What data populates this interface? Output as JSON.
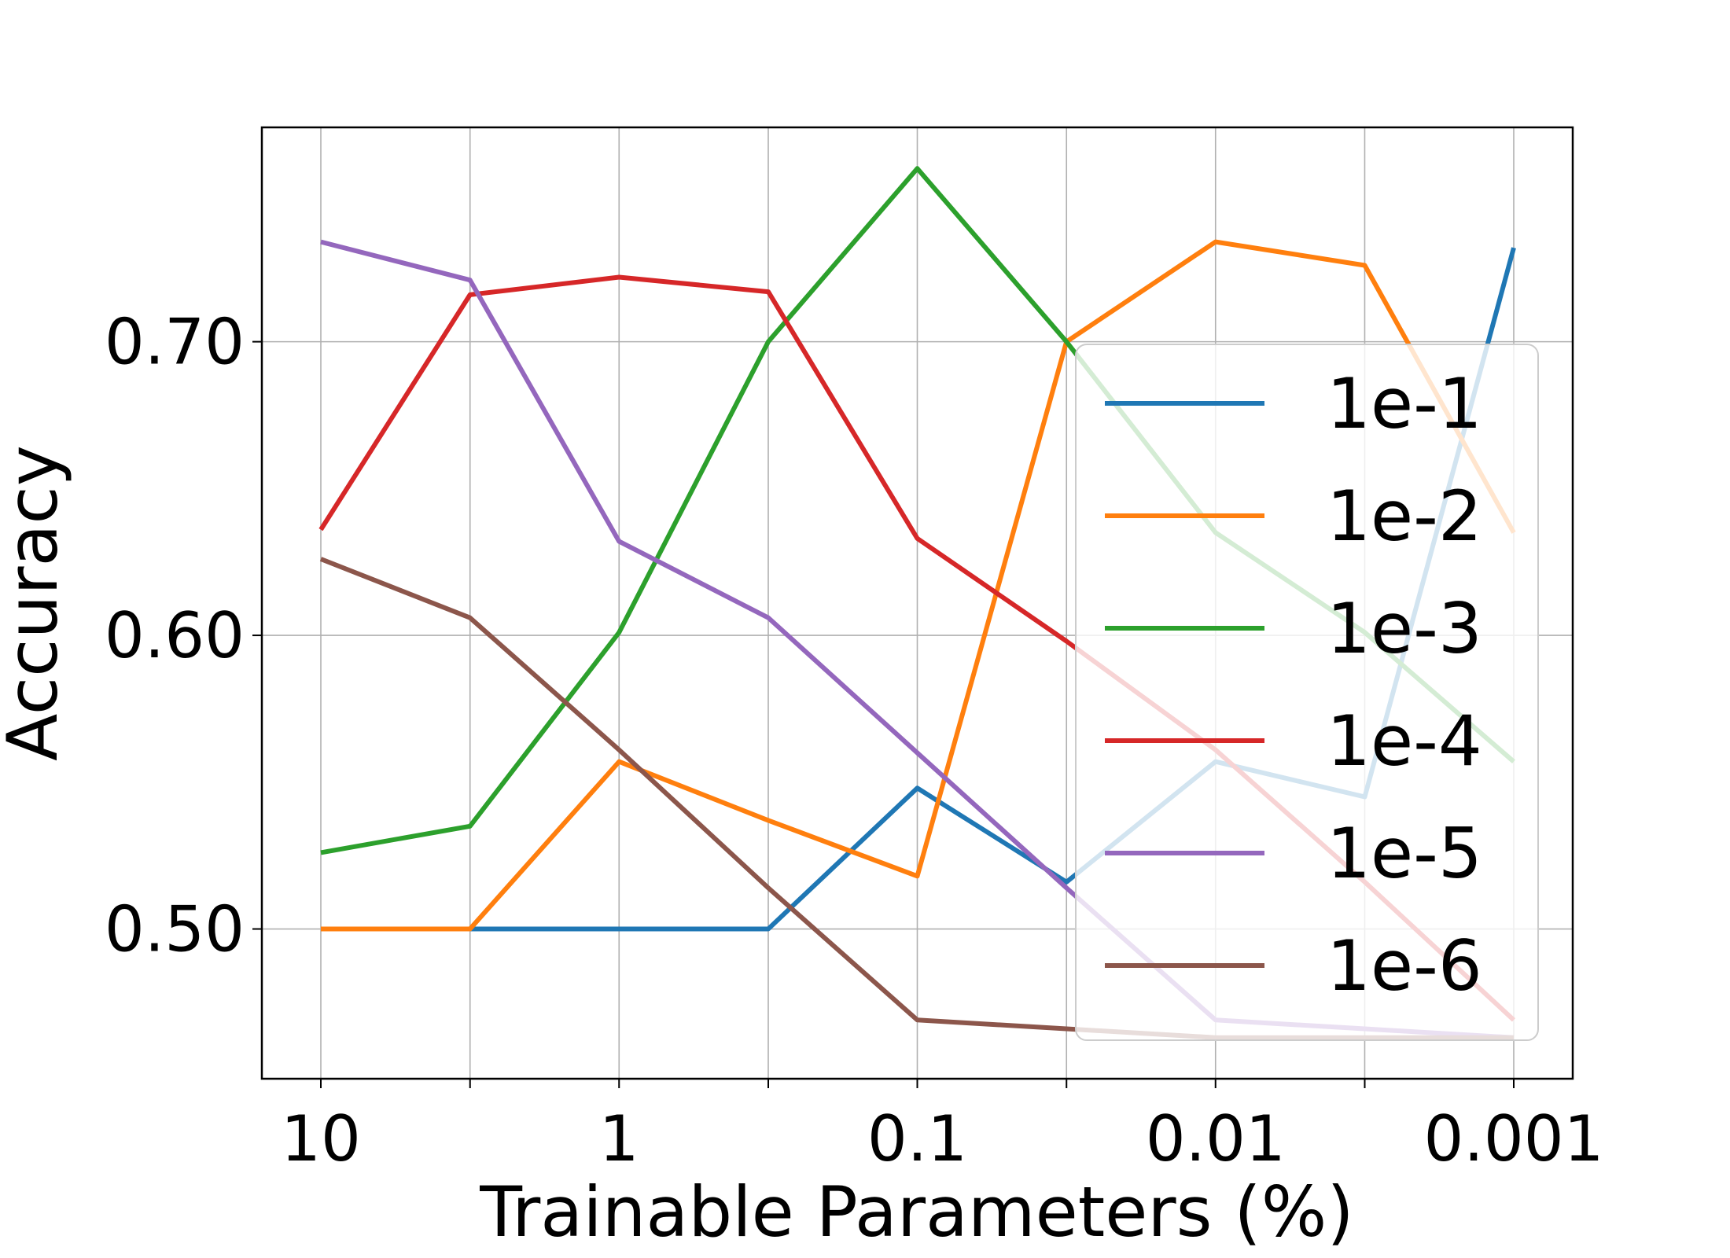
{
  "chart_data": {
    "type": "line",
    "title": "",
    "xlabel": "Trainable Parameters (%)",
    "ylabel": "Accuracy",
    "x": [
      10,
      3.16,
      1,
      0.316,
      0.1,
      0.0316,
      0.01,
      0.00316,
      0.001
    ],
    "x_scale": "log-reversed",
    "x_tick_values": [
      10,
      1,
      0.1,
      0.01,
      0.001
    ],
    "x_tick_labels": [
      "10",
      "1",
      "0.1",
      "0.01",
      "0.001"
    ],
    "y_tick_values": [
      0.5,
      0.6,
      0.7
    ],
    "y_tick_labels": [
      "0.50",
      "0.60",
      "0.70"
    ],
    "ylim": [
      0.449,
      0.773
    ],
    "grid": true,
    "legend_position": "lower-right",
    "series": [
      {
        "name": "1e-1",
        "color": "#1f77b4",
        "values": [
          0.5,
          0.5,
          0.5,
          0.5,
          0.548,
          0.516,
          0.557,
          0.545,
          0.732
        ]
      },
      {
        "name": "1e-2",
        "color": "#ff7f0e",
        "values": [
          0.5,
          0.5,
          0.557,
          0.537,
          0.518,
          0.7,
          0.734,
          0.726,
          0.635
        ]
      },
      {
        "name": "1e-3",
        "color": "#2ca02c",
        "values": [
          0.526,
          0.535,
          0.601,
          0.7,
          0.759,
          0.7,
          0.635,
          0.601,
          0.557
        ]
      },
      {
        "name": "1e-4",
        "color": "#d62728",
        "values": [
          0.636,
          0.716,
          0.722,
          0.717,
          0.633,
          0.598,
          0.561,
          0.516,
          0.469
        ]
      },
      {
        "name": "1e-5",
        "color": "#9467bd",
        "values": [
          0.734,
          0.721,
          0.632,
          0.606,
          0.56,
          0.514,
          0.469,
          0.466,
          0.463
        ]
      },
      {
        "name": "1e-6",
        "color": "#8c564b",
        "values": [
          0.626,
          0.606,
          0.561,
          0.514,
          0.469,
          0.466,
          0.463,
          0.463,
          0.463
        ]
      }
    ]
  }
}
